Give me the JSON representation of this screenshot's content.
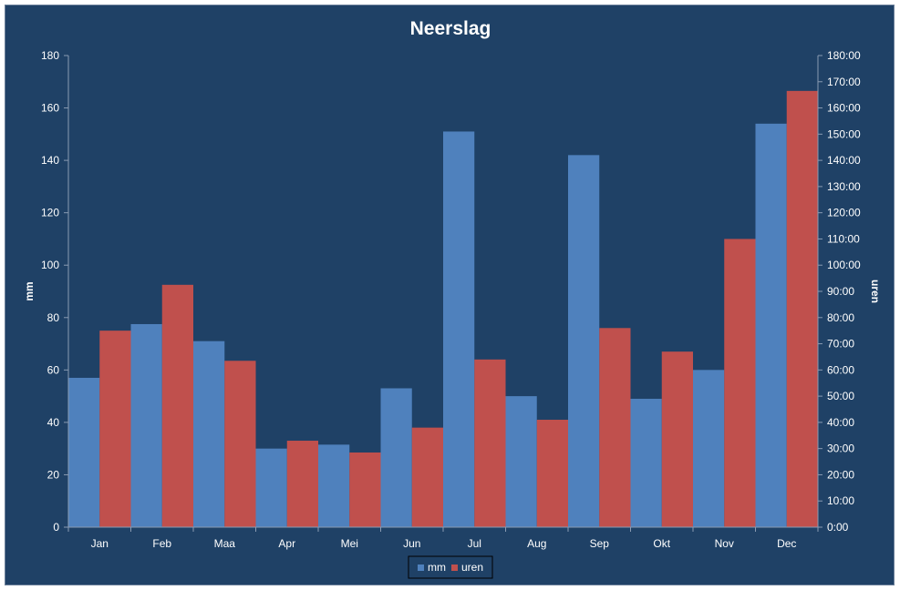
{
  "chart_data": {
    "type": "bar",
    "title": "Neerslag",
    "categories": [
      "Jan",
      "Feb",
      "Maa",
      "Apr",
      "Mei",
      "Jun",
      "Jul",
      "Aug",
      "Sep",
      "Okt",
      "Nov",
      "Dec"
    ],
    "series": [
      {
        "name": "mm",
        "axis": "left",
        "color": "#4f81bd",
        "values": [
          57,
          77.5,
          71,
          30,
          31.5,
          53,
          151,
          50,
          142,
          49,
          60,
          154
        ]
      },
      {
        "name": "uren",
        "axis": "right",
        "color": "#c0504d",
        "values_hours": [
          75,
          92.5,
          63.5,
          33,
          28.5,
          38,
          64,
          41,
          76,
          67,
          110,
          166.5
        ]
      }
    ],
    "ylabel": "mm",
    "ylim": [
      0,
      180
    ],
    "yticks": [
      "0",
      "20",
      "40",
      "60",
      "80",
      "100",
      "120",
      "140",
      "160",
      "180"
    ],
    "y2label": "uren",
    "y2lim": [
      0,
      180
    ],
    "y2ticks": [
      "0:00",
      "10:00",
      "20:00",
      "30:00",
      "40:00",
      "50:00",
      "60:00",
      "70:00",
      "80:00",
      "90:00",
      "100:00",
      "110:00",
      "120:00",
      "130:00",
      "140:00",
      "150:00",
      "160:00",
      "170:00",
      "180:00"
    ],
    "grid": false,
    "legend_position": "bottom",
    "background_color": "#1f4166"
  }
}
